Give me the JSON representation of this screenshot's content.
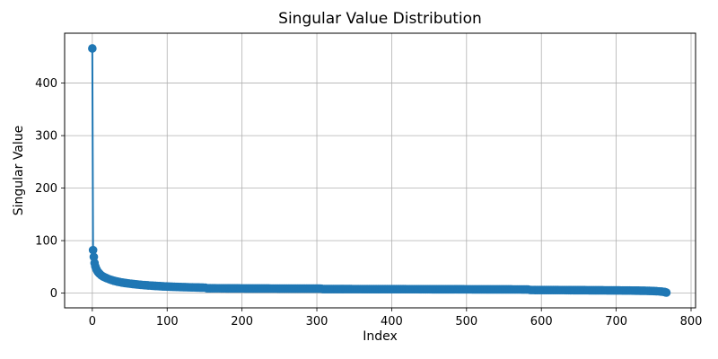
{
  "figure": {
    "title": "Singular Value Distribution",
    "background_color": "#ffffff"
  },
  "chart_data": {
    "type": "line",
    "title": "Singular Value Distribution",
    "xlabel": "Index",
    "ylabel": "Singular Value",
    "legend": "none",
    "grid": true,
    "grid_color": "#b0b0b0",
    "line_color": "#1f77b4",
    "marker": "circle",
    "text_color": "#000000",
    "frame_color": "#000000",
    "xlim": [
      -37,
      806
    ],
    "ylim": [
      -28,
      495
    ],
    "xticks": [
      0,
      100,
      200,
      300,
      400,
      500,
      600,
      700,
      800
    ],
    "yticks": [
      0,
      100,
      200,
      300,
      400
    ],
    "n_points": 768,
    "points": [
      [
        0,
        466
      ],
      [
        1,
        82
      ],
      [
        2,
        69
      ],
      [
        3,
        57.5
      ],
      [
        4,
        51
      ],
      [
        5,
        47
      ],
      [
        6,
        44
      ],
      [
        7,
        41.5
      ],
      [
        8,
        39.5
      ],
      [
        9,
        38
      ],
      [
        10,
        36.5
      ],
      [
        12,
        34
      ],
      [
        14,
        32
      ],
      [
        16,
        30.5
      ],
      [
        18,
        29.2
      ],
      [
        20,
        28
      ],
      [
        23,
        26.2
      ],
      [
        26,
        24.8
      ],
      [
        29,
        23.6
      ],
      [
        32,
        22.5
      ],
      [
        36,
        21.2
      ],
      [
        40,
        20.2
      ],
      [
        44,
        19.3
      ],
      [
        48,
        18.5
      ],
      [
        52,
        17.8
      ],
      [
        56,
        17.1
      ],
      [
        60,
        16.5
      ],
      [
        65,
        15.8
      ],
      [
        70,
        15.2
      ],
      [
        75,
        14.7
      ],
      [
        80,
        14.2
      ],
      [
        85,
        13.7
      ],
      [
        90,
        13.3
      ],
      [
        95,
        12.9
      ],
      [
        100,
        12.6
      ],
      [
        106,
        12.2
      ],
      [
        112,
        11.9
      ],
      [
        118,
        11.6
      ],
      [
        124,
        11.4
      ],
      [
        130,
        11.1
      ],
      [
        136,
        10.9
      ],
      [
        142,
        10.7
      ],
      [
        148,
        10.5
      ],
      [
        151,
        10.4
      ],
      [
        153,
        9.3
      ],
      [
        158,
        9.25
      ],
      [
        164,
        9.2
      ],
      [
        170,
        9.15
      ],
      [
        178,
        9.1
      ],
      [
        186,
        9.05
      ],
      [
        194,
        9.0
      ],
      [
        202,
        8.95
      ],
      [
        212,
        8.9
      ],
      [
        222,
        8.85
      ],
      [
        232,
        8.8
      ],
      [
        242,
        8.75
      ],
      [
        252,
        8.7
      ],
      [
        262,
        8.68
      ],
      [
        272,
        8.65
      ],
      [
        282,
        8.62
      ],
      [
        292,
        8.6
      ],
      [
        300,
        8.58
      ],
      [
        306,
        8.55
      ],
      [
        308,
        7.8
      ],
      [
        316,
        7.78
      ],
      [
        326,
        7.75
      ],
      [
        336,
        7.72
      ],
      [
        346,
        7.7
      ],
      [
        356,
        7.67
      ],
      [
        366,
        7.64
      ],
      [
        376,
        7.61
      ],
      [
        386,
        7.58
      ],
      [
        396,
        7.55
      ],
      [
        406,
        7.52
      ],
      [
        416,
        7.5
      ],
      [
        426,
        7.47
      ],
      [
        436,
        7.44
      ],
      [
        446,
        7.41
      ],
      [
        456,
        7.38
      ],
      [
        466,
        7.35
      ],
      [
        476,
        7.32
      ],
      [
        486,
        7.3
      ],
      [
        496,
        7.27
      ],
      [
        506,
        7.24
      ],
      [
        516,
        7.21
      ],
      [
        526,
        7.18
      ],
      [
        536,
        7.15
      ],
      [
        546,
        7.12
      ],
      [
        556,
        7.08
      ],
      [
        566,
        7.04
      ],
      [
        576,
        7.0
      ],
      [
        582,
        6.97
      ],
      [
        585,
        6.0
      ],
      [
        592,
        5.95
      ],
      [
        600,
        5.9
      ],
      [
        610,
        5.85
      ],
      [
        620,
        5.8
      ],
      [
        630,
        5.74
      ],
      [
        640,
        5.68
      ],
      [
        650,
        5.62
      ],
      [
        660,
        5.55
      ],
      [
        670,
        5.47
      ],
      [
        680,
        5.38
      ],
      [
        690,
        5.28
      ],
      [
        700,
        5.18
      ],
      [
        710,
        5.06
      ],
      [
        718,
        4.95
      ],
      [
        726,
        4.8
      ],
      [
        734,
        4.62
      ],
      [
        740,
        4.45
      ],
      [
        745,
        4.25
      ],
      [
        750,
        4.0
      ],
      [
        754,
        3.7
      ],
      [
        757,
        3.4
      ],
      [
        760,
        3.05
      ],
      [
        762,
        2.75
      ],
      [
        764,
        2.35
      ],
      [
        765,
        2.1
      ],
      [
        766,
        1.6
      ],
      [
        767,
        1.05
      ]
    ]
  }
}
